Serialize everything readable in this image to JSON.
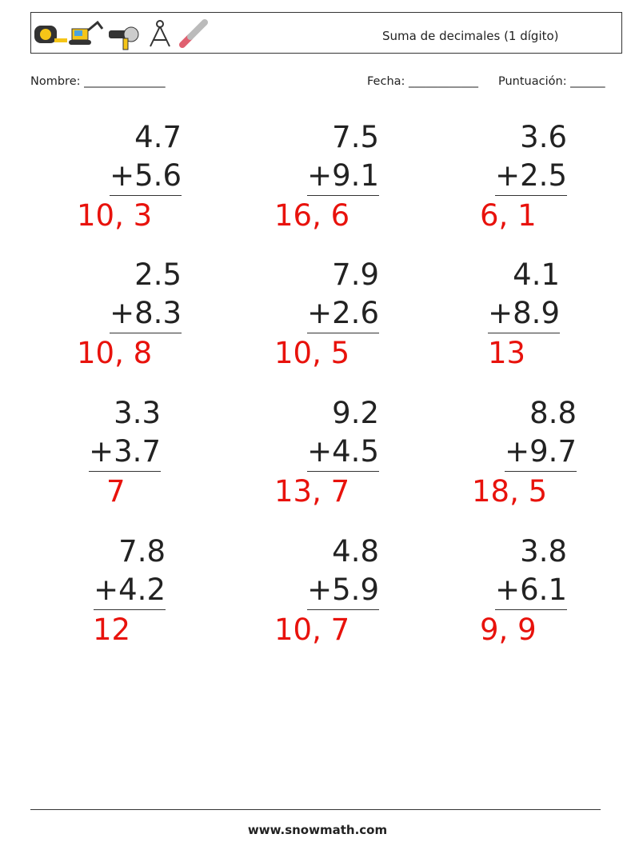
{
  "header": {
    "title": "Suma de decimales (1 dígito)"
  },
  "fields": {
    "name": "Nombre: ______________",
    "date": "Fecha: ____________",
    "score": "Puntuación: ______"
  },
  "problems": [
    {
      "top": "4.7",
      "bottom": "+5.6",
      "answer": "10, 3"
    },
    {
      "top": "7.5",
      "bottom": "+9.1",
      "answer": "16, 6"
    },
    {
      "top": "3.6",
      "bottom": "+2.5",
      "answer": "6, 1"
    },
    {
      "top": "2.5",
      "bottom": "+8.3",
      "answer": "10, 8"
    },
    {
      "top": "7.9",
      "bottom": "+2.6",
      "answer": "10, 5"
    },
    {
      "top": "4.1",
      "bottom": "+8.9",
      "answer": "13"
    },
    {
      "top": "3.3",
      "bottom": "+3.7",
      "answer": "7"
    },
    {
      "top": "9.2",
      "bottom": "+4.5",
      "answer": "13, 7"
    },
    {
      "top": "8.8",
      "bottom": "+9.7",
      "answer": "18, 5"
    },
    {
      "top": "7.8",
      "bottom": "+4.2",
      "answer": "12"
    },
    {
      "top": "4.8",
      "bottom": "+5.9",
      "answer": "10, 7"
    },
    {
      "top": "3.8",
      "bottom": "+6.1",
      "answer": "9, 9"
    }
  ],
  "footer": {
    "url": "www.snowmath.com"
  }
}
